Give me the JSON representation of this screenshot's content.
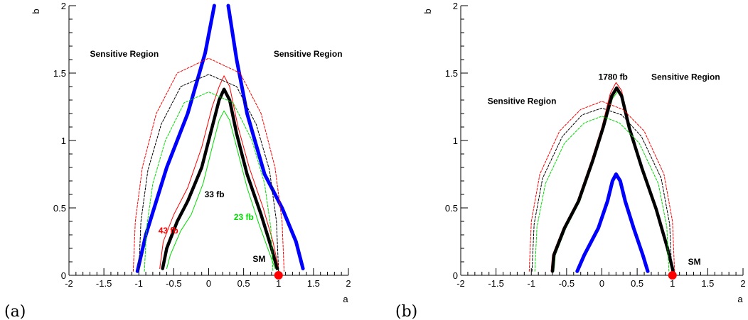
{
  "chart_data": [
    {
      "panel": "(a)",
      "type": "line",
      "title": "",
      "xlabel": "a",
      "ylabel": "b",
      "xlim": [
        -2,
        2
      ],
      "ylim": [
        0,
        2
      ],
      "xticks": [
        "-2",
        "-1.5",
        "-1",
        "-0.5",
        "0",
        "0.5",
        "1",
        "1.5",
        "2"
      ],
      "yticks": [
        "0",
        "0.5",
        "1",
        "1.5",
        "2"
      ],
      "series": [
        {
          "color": "#0000ff",
          "style": "thick",
          "points": [
            [
              -1.02,
              0.03
            ],
            [
              -0.9,
              0.3
            ],
            [
              -0.6,
              0.8
            ],
            [
              -0.3,
              1.2
            ],
            [
              -0.05,
              1.65
            ],
            [
              0.08,
              2.0
            ]
          ]
        },
        {
          "color": "#0000ff",
          "style": "thick",
          "points": [
            [
              0.28,
              2.0
            ],
            [
              0.4,
              1.6
            ],
            [
              0.55,
              1.2
            ],
            [
              0.8,
              0.75
            ],
            [
              1.05,
              0.5
            ],
            [
              1.25,
              0.25
            ],
            [
              1.35,
              0.05
            ]
          ]
        },
        {
          "color": "#000000",
          "style": "thick",
          "points": [
            [
              -0.66,
              0.05
            ],
            [
              -0.6,
              0.2
            ],
            [
              -0.45,
              0.4
            ],
            [
              -0.3,
              0.55
            ],
            [
              -0.1,
              0.8
            ],
            [
              0.05,
              1.1
            ],
            [
              0.15,
              1.3
            ],
            [
              0.22,
              1.38
            ],
            [
              0.3,
              1.3
            ],
            [
              0.4,
              1.05
            ],
            [
              0.55,
              0.75
            ],
            [
              0.75,
              0.45
            ],
            [
              0.9,
              0.2
            ],
            [
              0.98,
              0.05
            ]
          ]
        },
        {
          "color": "#ff0000",
          "style": "thin",
          "points": [
            [
              -0.7,
              0.05
            ],
            [
              -0.65,
              0.25
            ],
            [
              -0.5,
              0.45
            ],
            [
              -0.3,
              0.65
            ],
            [
              -0.1,
              0.95
            ],
            [
              0.05,
              1.25
            ],
            [
              0.15,
              1.4
            ],
            [
              0.22,
              1.48
            ],
            [
              0.3,
              1.4
            ],
            [
              0.42,
              1.1
            ],
            [
              0.58,
              0.8
            ],
            [
              0.78,
              0.5
            ],
            [
              0.92,
              0.25
            ],
            [
              1.0,
              0.05
            ]
          ]
        },
        {
          "color": "#00dd00",
          "style": "thin",
          "points": [
            [
              -0.6,
              0.05
            ],
            [
              -0.55,
              0.15
            ],
            [
              -0.4,
              0.33
            ],
            [
              -0.25,
              0.45
            ],
            [
              -0.08,
              0.68
            ],
            [
              0.05,
              0.95
            ],
            [
              0.15,
              1.15
            ],
            [
              0.22,
              1.22
            ],
            [
              0.3,
              1.15
            ],
            [
              0.4,
              0.95
            ],
            [
              0.55,
              0.65
            ],
            [
              0.72,
              0.38
            ],
            [
              0.88,
              0.15
            ],
            [
              0.95,
              0.05
            ]
          ]
        },
        {
          "color": "#ff0000",
          "style": "dashed",
          "points": [
            [
              -1.08,
              0.03
            ],
            [
              -1.05,
              0.4
            ],
            [
              -0.95,
              0.8
            ],
            [
              -0.75,
              1.2
            ],
            [
              -0.45,
              1.5
            ],
            [
              0,
              1.61
            ],
            [
              0.45,
              1.5
            ],
            [
              0.75,
              1.2
            ],
            [
              0.95,
              0.8
            ],
            [
              1.05,
              0.4
            ],
            [
              1.08,
              0.03
            ]
          ]
        },
        {
          "color": "#000000",
          "style": "dashed",
          "points": [
            [
              -1.0,
              0.03
            ],
            [
              -0.97,
              0.4
            ],
            [
              -0.87,
              0.78
            ],
            [
              -0.68,
              1.12
            ],
            [
              -0.4,
              1.4
            ],
            [
              0,
              1.49
            ],
            [
              0.4,
              1.4
            ],
            [
              0.68,
              1.12
            ],
            [
              0.87,
              0.78
            ],
            [
              0.97,
              0.4
            ],
            [
              1.0,
              0.03
            ]
          ]
        },
        {
          "color": "#00dd00",
          "style": "dashed",
          "points": [
            [
              -0.92,
              0.03
            ],
            [
              -0.89,
              0.35
            ],
            [
              -0.8,
              0.68
            ],
            [
              -0.62,
              1.0
            ],
            [
              -0.35,
              1.28
            ],
            [
              0,
              1.36
            ],
            [
              0.35,
              1.28
            ],
            [
              0.62,
              1.0
            ],
            [
              0.8,
              0.68
            ],
            [
              0.89,
              0.35
            ],
            [
              0.92,
              0.03
            ]
          ]
        }
      ],
      "point": {
        "x": 1,
        "y": 0,
        "color": "#ff0000"
      },
      "annotations": [
        {
          "text": "Sensitive Region",
          "x": -1.7,
          "y": 1.62,
          "color": "#000000"
        },
        {
          "text": "Sensitive Region",
          "x": 0.93,
          "y": 1.62,
          "color": "#000000"
        },
        {
          "text": "33 fb",
          "x": -0.06,
          "y": 0.58,
          "color": "#000000"
        },
        {
          "text": "23 fb",
          "x": 0.36,
          "y": 0.41,
          "color": "#00dd00"
        },
        {
          "text": "43 fb",
          "x": -0.72,
          "y": 0.31,
          "color": "#ff0000"
        },
        {
          "text": "SM",
          "x": 0.63,
          "y": 0.1,
          "color": "#000000"
        }
      ]
    },
    {
      "panel": "(b)",
      "type": "line",
      "title": "",
      "xlabel": "a",
      "ylabel": "b",
      "xlim": [
        -2,
        2
      ],
      "ylim": [
        0,
        2
      ],
      "xticks": [
        "-2",
        "-1.5",
        "-1",
        "-0.5",
        "0",
        "0.5",
        "1",
        "1.5",
        "2"
      ],
      "yticks": [
        "0",
        "0.5",
        "1",
        "1.5",
        "2"
      ],
      "series": [
        {
          "color": "#0000ff",
          "style": "thick",
          "points": [
            [
              -0.35,
              0.03
            ],
            [
              -0.25,
              0.15
            ],
            [
              -0.05,
              0.35
            ],
            [
              0.08,
              0.55
            ],
            [
              0.15,
              0.7
            ],
            [
              0.2,
              0.75
            ],
            [
              0.26,
              0.7
            ],
            [
              0.33,
              0.55
            ],
            [
              0.45,
              0.35
            ],
            [
              0.58,
              0.15
            ],
            [
              0.65,
              0.03
            ]
          ]
        },
        {
          "color": "#ff0000",
          "style": "thin",
          "points": [
            [
              -0.72,
              0.03
            ],
            [
              -0.7,
              0.15
            ],
            [
              -0.55,
              0.35
            ],
            [
              -0.35,
              0.55
            ],
            [
              -0.15,
              0.85
            ],
            [
              0,
              1.1
            ],
            [
              0.12,
              1.35
            ],
            [
              0.2,
              1.43
            ],
            [
              0.28,
              1.37
            ],
            [
              0.38,
              1.1
            ],
            [
              0.55,
              0.8
            ],
            [
              0.75,
              0.5
            ],
            [
              0.92,
              0.2
            ],
            [
              1.0,
              0.03
            ]
          ]
        },
        {
          "color": "#00dd00",
          "style": "thin",
          "points": [
            [
              -0.68,
              0.03
            ],
            [
              -0.66,
              0.15
            ],
            [
              -0.51,
              0.35
            ],
            [
              -0.31,
              0.55
            ],
            [
              -0.12,
              0.85
            ],
            [
              0.03,
              1.1
            ],
            [
              0.15,
              1.31
            ],
            [
              0.22,
              1.36
            ],
            [
              0.29,
              1.31
            ],
            [
              0.4,
              1.08
            ],
            [
              0.58,
              0.78
            ],
            [
              0.78,
              0.48
            ],
            [
              0.94,
              0.2
            ],
            [
              1.02,
              0.03
            ]
          ]
        },
        {
          "color": "#000000",
          "style": "thick",
          "points": [
            [
              -0.7,
              0.03
            ],
            [
              -0.68,
              0.15
            ],
            [
              -0.53,
              0.35
            ],
            [
              -0.33,
              0.55
            ],
            [
              -0.13,
              0.85
            ],
            [
              0.02,
              1.1
            ],
            [
              0.14,
              1.33
            ],
            [
              0.21,
              1.39
            ],
            [
              0.28,
              1.33
            ],
            [
              0.39,
              1.09
            ],
            [
              0.57,
              0.79
            ],
            [
              0.77,
              0.49
            ],
            [
              0.93,
              0.2
            ],
            [
              1.01,
              0.03
            ]
          ]
        },
        {
          "color": "#ff0000",
          "style": "dashed",
          "points": [
            [
              -1.03,
              0.03
            ],
            [
              -1.0,
              0.4
            ],
            [
              -0.88,
              0.75
            ],
            [
              -0.6,
              1.07
            ],
            [
              -0.3,
              1.23
            ],
            [
              0,
              1.29
            ],
            [
              0.3,
              1.23
            ],
            [
              0.6,
              1.07
            ],
            [
              0.88,
              0.75
            ],
            [
              1.0,
              0.4
            ],
            [
              1.03,
              0.03
            ]
          ]
        },
        {
          "color": "#000000",
          "style": "dashed",
          "points": [
            [
              -0.99,
              0.03
            ],
            [
              -0.96,
              0.38
            ],
            [
              -0.84,
              0.72
            ],
            [
              -0.56,
              1.03
            ],
            [
              -0.28,
              1.19
            ],
            [
              0,
              1.24
            ],
            [
              0.28,
              1.19
            ],
            [
              0.56,
              1.03
            ],
            [
              0.84,
              0.72
            ],
            [
              0.96,
              0.38
            ],
            [
              0.99,
              0.03
            ]
          ]
        },
        {
          "color": "#00dd00",
          "style": "dashed",
          "points": [
            [
              -0.95,
              0.03
            ],
            [
              -0.92,
              0.36
            ],
            [
              -0.8,
              0.68
            ],
            [
              -0.53,
              0.98
            ],
            [
              -0.25,
              1.13
            ],
            [
              0,
              1.18
            ],
            [
              0.25,
              1.13
            ],
            [
              0.53,
              0.98
            ],
            [
              0.8,
              0.68
            ],
            [
              0.92,
              0.36
            ],
            [
              0.95,
              0.03
            ]
          ]
        }
      ],
      "point": {
        "x": 1,
        "y": 0,
        "color": "#ff0000"
      },
      "annotations": [
        {
          "text": "Sensitive Region",
          "x": -1.62,
          "y": 1.27,
          "color": "#000000"
        },
        {
          "text": "Sensitive Region",
          "x": 0.7,
          "y": 1.45,
          "color": "#000000"
        },
        {
          "text": "1780 fb",
          "x": -0.05,
          "y": 1.45,
          "color": "#000000"
        },
        {
          "text": "SM",
          "x": 1.22,
          "y": 0.08,
          "color": "#000000"
        }
      ]
    }
  ]
}
